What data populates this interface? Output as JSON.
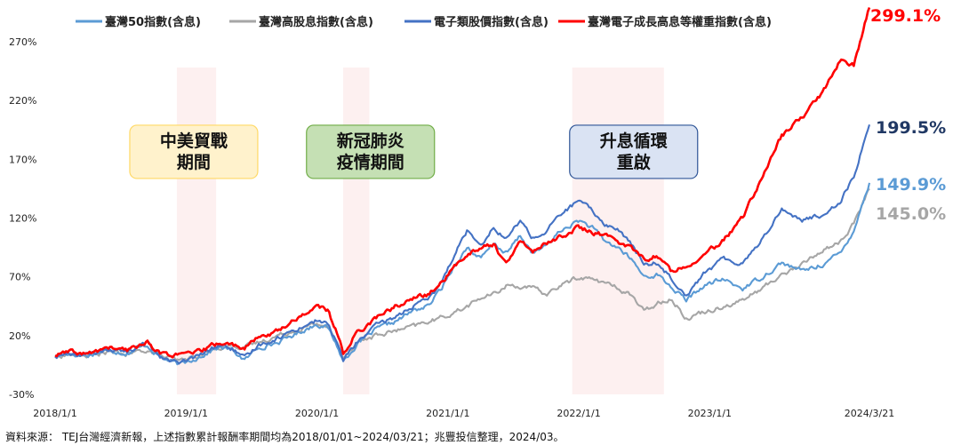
{
  "chart_data": {
    "type": "line",
    "title": "",
    "xlabel": "",
    "ylabel": "",
    "ylim": [
      -30,
      300
    ],
    "y_ticks": [
      "-30%",
      "20%",
      "70%",
      "120%",
      "170%",
      "220%",
      "270%"
    ],
    "y_tick_values": [
      -30,
      20,
      70,
      120,
      170,
      220,
      270
    ],
    "x_ticks": [
      "2018/1/1",
      "2019/1/1",
      "2020/1/1",
      "2021/1/1",
      "2022/1/1",
      "2023/1/1",
      "2024/3/21"
    ],
    "x_tick_values": [
      2018.0,
      2019.0,
      2020.0,
      2021.0,
      2022.0,
      2023.0,
      2024.22
    ],
    "x_range": [
      2018.0,
      2024.22
    ],
    "grid": false,
    "legend_position": "top",
    "series": [
      {
        "name": "臺灣50指數(含息)",
        "color": "#5B9BD5",
        "end_label": "149.9%",
        "points": [
          [
            2018.0,
            2
          ],
          [
            2018.1,
            5
          ],
          [
            2018.25,
            3
          ],
          [
            2018.4,
            8
          ],
          [
            2018.55,
            5
          ],
          [
            2018.7,
            12
          ],
          [
            2018.8,
            2
          ],
          [
            2018.95,
            -5
          ],
          [
            2019.1,
            2
          ],
          [
            2019.25,
            10
          ],
          [
            2019.35,
            8
          ],
          [
            2019.45,
            -1
          ],
          [
            2019.55,
            10
          ],
          [
            2019.7,
            14
          ],
          [
            2019.85,
            22
          ],
          [
            2020.0,
            30
          ],
          [
            2020.08,
            27
          ],
          [
            2020.16,
            10
          ],
          [
            2020.2,
            -2
          ],
          [
            2020.3,
            12
          ],
          [
            2020.45,
            25
          ],
          [
            2020.6,
            32
          ],
          [
            2020.75,
            42
          ],
          [
            2020.85,
            45
          ],
          [
            2020.95,
            60
          ],
          [
            2021.05,
            80
          ],
          [
            2021.15,
            95
          ],
          [
            2021.25,
            85
          ],
          [
            2021.35,
            98
          ],
          [
            2021.45,
            90
          ],
          [
            2021.55,
            105
          ],
          [
            2021.65,
            90
          ],
          [
            2021.75,
            96
          ],
          [
            2021.85,
            108
          ],
          [
            2022.0,
            118
          ],
          [
            2022.1,
            112
          ],
          [
            2022.2,
            100
          ],
          [
            2022.3,
            95
          ],
          [
            2022.4,
            85
          ],
          [
            2022.5,
            70
          ],
          [
            2022.6,
            72
          ],
          [
            2022.7,
            62
          ],
          [
            2022.82,
            50
          ],
          [
            2022.95,
            62
          ],
          [
            2023.1,
            68
          ],
          [
            2023.25,
            60
          ],
          [
            2023.4,
            70
          ],
          [
            2023.55,
            82
          ],
          [
            2023.7,
            75
          ],
          [
            2023.85,
            80
          ],
          [
            2024.0,
            90
          ],
          [
            2024.1,
            110
          ],
          [
            2024.22,
            149.9
          ]
        ]
      },
      {
        "name": "臺灣高股息指數(含息)",
        "color": "#A6A6A6",
        "end_label": "145.0%",
        "points": [
          [
            2018.0,
            2
          ],
          [
            2018.1,
            4
          ],
          [
            2018.25,
            3
          ],
          [
            2018.4,
            6
          ],
          [
            2018.55,
            4
          ],
          [
            2018.7,
            8
          ],
          [
            2018.8,
            3
          ],
          [
            2018.95,
            -2
          ],
          [
            2019.1,
            3
          ],
          [
            2019.25,
            10
          ],
          [
            2019.35,
            12
          ],
          [
            2019.45,
            10
          ],
          [
            2019.55,
            14
          ],
          [
            2019.7,
            20
          ],
          [
            2019.85,
            25
          ],
          [
            2020.0,
            30
          ],
          [
            2020.08,
            28
          ],
          [
            2020.16,
            12
          ],
          [
            2020.2,
            2
          ],
          [
            2020.3,
            14
          ],
          [
            2020.45,
            20
          ],
          [
            2020.6,
            24
          ],
          [
            2020.75,
            28
          ],
          [
            2020.85,
            32
          ],
          [
            2020.95,
            35
          ],
          [
            2021.05,
            40
          ],
          [
            2021.15,
            45
          ],
          [
            2021.25,
            52
          ],
          [
            2021.35,
            55
          ],
          [
            2021.45,
            63
          ],
          [
            2021.55,
            62
          ],
          [
            2021.65,
            60
          ],
          [
            2021.75,
            55
          ],
          [
            2021.85,
            62
          ],
          [
            2022.0,
            70
          ],
          [
            2022.1,
            68
          ],
          [
            2022.2,
            65
          ],
          [
            2022.3,
            60
          ],
          [
            2022.4,
            55
          ],
          [
            2022.5,
            40
          ],
          [
            2022.6,
            48
          ],
          [
            2022.7,
            52
          ],
          [
            2022.82,
            35
          ],
          [
            2022.95,
            40
          ],
          [
            2023.1,
            45
          ],
          [
            2023.25,
            50
          ],
          [
            2023.4,
            60
          ],
          [
            2023.55,
            72
          ],
          [
            2023.7,
            80
          ],
          [
            2023.85,
            92
          ],
          [
            2024.0,
            100
          ],
          [
            2024.1,
            115
          ],
          [
            2024.22,
            145.0
          ]
        ]
      },
      {
        "name": "電子類股價指數(含息)",
        "color": "#4472C4",
        "end_label": "199.5%",
        "points": [
          [
            2018.0,
            2
          ],
          [
            2018.1,
            5
          ],
          [
            2018.25,
            3
          ],
          [
            2018.4,
            9
          ],
          [
            2018.55,
            6
          ],
          [
            2018.7,
            14
          ],
          [
            2018.8,
            3
          ],
          [
            2018.95,
            -4
          ],
          [
            2019.1,
            3
          ],
          [
            2019.25,
            12
          ],
          [
            2019.35,
            9
          ],
          [
            2019.45,
            0
          ],
          [
            2019.55,
            12
          ],
          [
            2019.7,
            18
          ],
          [
            2019.85,
            26
          ],
          [
            2020.0,
            33
          ],
          [
            2020.08,
            30
          ],
          [
            2020.16,
            12
          ],
          [
            2020.2,
            -1
          ],
          [
            2020.3,
            14
          ],
          [
            2020.45,
            28
          ],
          [
            2020.6,
            36
          ],
          [
            2020.75,
            46
          ],
          [
            2020.85,
            50
          ],
          [
            2020.95,
            65
          ],
          [
            2021.05,
            90
          ],
          [
            2021.15,
            110
          ],
          [
            2021.25,
            98
          ],
          [
            2021.35,
            112
          ],
          [
            2021.45,
            102
          ],
          [
            2021.55,
            118
          ],
          [
            2021.65,
            103
          ],
          [
            2021.75,
            108
          ],
          [
            2021.85,
            122
          ],
          [
            2022.0,
            135
          ],
          [
            2022.1,
            126
          ],
          [
            2022.2,
            115
          ],
          [
            2022.3,
            110
          ],
          [
            2022.4,
            98
          ],
          [
            2022.5,
            80
          ],
          [
            2022.6,
            82
          ],
          [
            2022.7,
            70
          ],
          [
            2022.82,
            55
          ],
          [
            2022.95,
            72
          ],
          [
            2023.1,
            85
          ],
          [
            2023.25,
            82
          ],
          [
            2023.4,
            102
          ],
          [
            2023.55,
            128
          ],
          [
            2023.7,
            118
          ],
          [
            2023.85,
            122
          ],
          [
            2024.0,
            135
          ],
          [
            2024.1,
            155
          ],
          [
            2024.22,
            199.5
          ]
        ]
      },
      {
        "name": "臺灣電子成長高息等權重指數(含息)",
        "color": "#FF0000",
        "end_label": "299.1%",
        "points": [
          [
            2018.0,
            3
          ],
          [
            2018.1,
            6
          ],
          [
            2018.25,
            4
          ],
          [
            2018.4,
            10
          ],
          [
            2018.55,
            7
          ],
          [
            2018.7,
            15
          ],
          [
            2018.8,
            5
          ],
          [
            2018.95,
            3
          ],
          [
            2019.1,
            6
          ],
          [
            2019.25,
            14
          ],
          [
            2019.35,
            12
          ],
          [
            2019.45,
            10
          ],
          [
            2019.55,
            18
          ],
          [
            2019.7,
            24
          ],
          [
            2019.85,
            35
          ],
          [
            2020.0,
            45
          ],
          [
            2020.08,
            42
          ],
          [
            2020.16,
            20
          ],
          [
            2020.2,
            5
          ],
          [
            2020.3,
            22
          ],
          [
            2020.45,
            35
          ],
          [
            2020.6,
            45
          ],
          [
            2020.75,
            52
          ],
          [
            2020.85,
            55
          ],
          [
            2020.95,
            65
          ],
          [
            2021.05,
            78
          ],
          [
            2021.15,
            90
          ],
          [
            2021.25,
            95
          ],
          [
            2021.35,
            98
          ],
          [
            2021.45,
            80
          ],
          [
            2021.55,
            100
          ],
          [
            2021.65,
            92
          ],
          [
            2021.75,
            98
          ],
          [
            2021.85,
            104
          ],
          [
            2022.0,
            112
          ],
          [
            2022.1,
            108
          ],
          [
            2022.2,
            105
          ],
          [
            2022.3,
            100
          ],
          [
            2022.4,
            95
          ],
          [
            2022.5,
            85
          ],
          [
            2022.6,
            88
          ],
          [
            2022.7,
            75
          ],
          [
            2022.82,
            80
          ],
          [
            2022.95,
            88
          ],
          [
            2023.1,
            100
          ],
          [
            2023.25,
            120
          ],
          [
            2023.4,
            155
          ],
          [
            2023.55,
            190
          ],
          [
            2023.7,
            205
          ],
          [
            2023.85,
            225
          ],
          [
            2024.0,
            255
          ],
          [
            2024.1,
            250
          ],
          [
            2024.22,
            299.1
          ]
        ]
      }
    ],
    "shaded_periods": [
      {
        "label_lines": [
          "中美貿戰",
          "期間"
        ],
        "start": 2018.93,
        "end": 2019.23,
        "box_x": 2018.57,
        "box_y": 199,
        "box_color": "#FFF2CC",
        "box_border": "#FFD966"
      },
      {
        "label_lines": [
          "新冠肺炎",
          "疫情期間"
        ],
        "start": 2020.2,
        "end": 2020.4,
        "box_x": 2019.92,
        "box_y": 199,
        "box_color": "#C5E0B4",
        "box_border": "#70AD47"
      },
      {
        "label_lines": [
          "升息循環",
          "重啟"
        ],
        "start": 2021.95,
        "end": 2022.65,
        "box_x": 2021.93,
        "box_y": 199,
        "box_color": "#DAE3F3",
        "box_border": "#2F5597"
      }
    ]
  },
  "source_note": "資料來源： TEJ台灣經濟新報，上述指數累計報酬率期間均為2018/01/01~2024/03/21；兆豐投信整理，2024/03。"
}
